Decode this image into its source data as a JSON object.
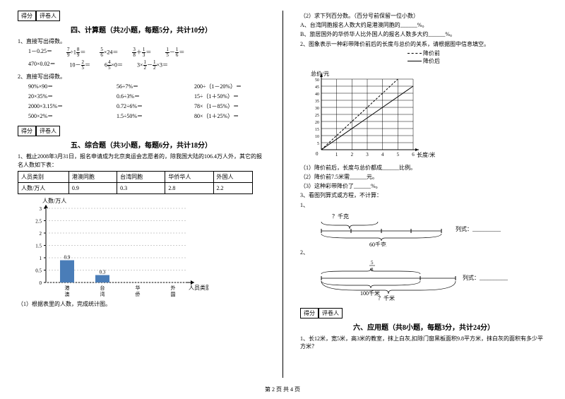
{
  "scorebox": {
    "score": "得分",
    "reviewer": "评卷人"
  },
  "section4": {
    "title": "四、计算题（共2小题，每题5分，共计10分）",
    "q1": "1、直接写出得数。",
    "row1": [
      "1－0.25＝",
      "÷1",
      "＝",
      "×24＝",
      "＋",
      "＝",
      "－",
      "＝"
    ],
    "fracs1": {
      "a": "7",
      "b": "9",
      "c": "8",
      "d": "9",
      "e": "5",
      "f": "6",
      "g": "3",
      "h": "8",
      "i": "1",
      "j": "3",
      "k": "1",
      "l": "5",
      "m": "1",
      "n": "6"
    },
    "row2": [
      "470×0.02＝",
      "10－",
      "＝",
      "6",
      "×0＝",
      "3×",
      "－",
      "×3＝"
    ],
    "fracs2": {
      "a": "2",
      "b": "5",
      "c": "4",
      "d": "5",
      "e": "1",
      "f": "2",
      "g": "1",
      "h": "2"
    },
    "q2": "2、直接写出得数。",
    "calc2": [
      [
        "90%×90＝",
        "56÷7%＝",
        "200÷（1－20%）＝"
      ],
      [
        "20×35%＝",
        "0.6÷3%＝",
        "15÷（1＋50%）＝"
      ],
      [
        "2000×3.15%＝",
        "0.72÷6%＝",
        "78×（1－85%）＝"
      ],
      [
        "500×2%＝",
        "1.5÷50%＝",
        "80×（1＋25%）＝"
      ]
    ]
  },
  "section5": {
    "title": "五、综合题（共3小题，每题6分，共计18分）",
    "q1": "1、截止2008年3月31日，报名申请成为北京奥运会志愿者的，除我国大陆的106.4万人外，其它的报名人数如下表：",
    "table": {
      "headers": [
        "人员类别",
        "港澳同胞",
        "台湾同胞",
        "华侨华人",
        "外国人"
      ],
      "row": [
        "人数/万人",
        "0.9",
        "0.3",
        "2.8",
        "2.2"
      ]
    },
    "chart": {
      "ylabel": "人数/万人",
      "xlabel": "人员类别",
      "yticks": [
        "0",
        "0.5",
        "1",
        "1.5",
        "2",
        "2.5",
        "3"
      ],
      "categories": [
        "港澳同胞",
        "台湾同胞",
        "华侨华人",
        "外国人"
      ],
      "values": [
        0.9,
        0.3,
        null,
        null
      ],
      "bar_labels": [
        "0.9",
        "0.3",
        "",
        ""
      ],
      "ymax": 3,
      "bar_color": "#4a7db8"
    },
    "q1b": "（1）根据表里的人数，完成统计图。"
  },
  "right": {
    "q2": "（2）求下列百分数。（百分号前保留一位小数）",
    "qA": "A、台湾同胞报名人数大约是港澳同胞的______%。",
    "qB": "B、旅居国外的华侨华人比外国人的报名人数多大约______%。",
    "q2main": "2、图象表示一种彩带降价前后的长度与总价的关系，请根据图中信息填空。",
    "legend": {
      "before": "降价前",
      "after": "降价后"
    },
    "grid_chart": {
      "ylabel": "总价/元",
      "xlabel": "长度/米",
      "xticks": [
        "1",
        "2",
        "3",
        "4",
        "5",
        "6"
      ],
      "yticks": [
        "5",
        "10",
        "15",
        "20",
        "25",
        "30",
        "35",
        "40",
        "45",
        "50"
      ],
      "ymax": 50,
      "xmax": 6,
      "line1": [
        [
          0,
          0
        ],
        [
          5,
          50
        ]
      ],
      "line2": [
        [
          0,
          0
        ],
        [
          6,
          45
        ]
      ]
    },
    "sub1": "（1）降价前后，长度与总价都成______比例。",
    "sub2": "（2）降价前7.5米需______元。",
    "sub3": "（3）这种彩带降价了______%。",
    "q3": "3、看图列算式或方程，不计算：",
    "q3_1": "1、",
    "bracket1": {
      "top": "？千克",
      "bottom": "60千克",
      "label": "列式：__________"
    },
    "q3_2": "2、",
    "bracket2": {
      "frac_num": "5",
      "frac_den": "8",
      "bottom": "100千米",
      "unknown": "？千米",
      "label": "列式：__________"
    }
  },
  "section6": {
    "title": "六、应用题（共8小题，每题3分，共计24分）",
    "q1": "1、长12米，宽5米，高3米的教室，抹上白灰,扣除门窗黑板面积9.8平方米，抹白灰的面积有多少平方米？"
  },
  "footer": "第 2 页  共 4 页"
}
